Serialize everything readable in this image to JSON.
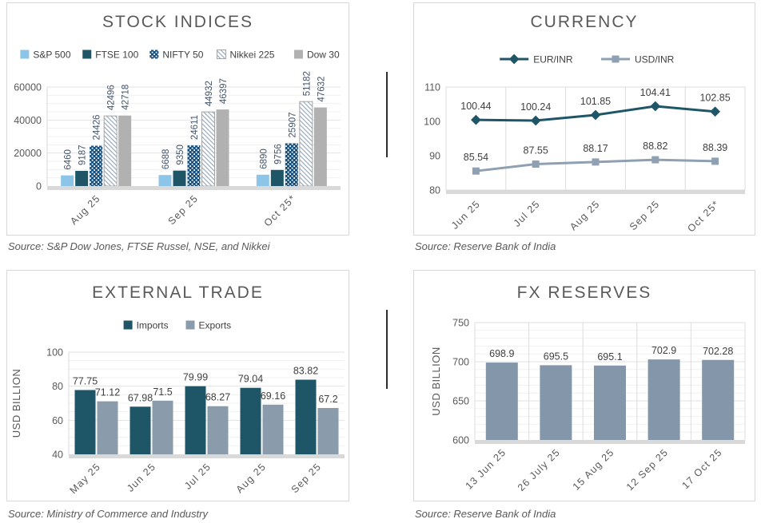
{
  "colors": {
    "dark_teal": "#1E5668",
    "dotted_blue": "#174F7D",
    "light_blue": "#8DC5E8",
    "gray_blue": "#8496A9",
    "gray": "#B1B1B2",
    "title_gray": "#595959",
    "panel_border": "#D8D8D8"
  },
  "chart_data": [
    {
      "id": "stock-indices",
      "type": "bar",
      "title": "STOCK INDICES",
      "source": "Source: S&P Dow Jones, FTSE Russel, NSE, and Nikkei",
      "categories": [
        "Aug 25",
        "Sep 25",
        "Oct 25*"
      ],
      "series": [
        {
          "name": "S&P 500",
          "values": [
            6460,
            6688,
            6890
          ],
          "color": "#8DC5E8",
          "pattern": "solid"
        },
        {
          "name": "FTSE 100",
          "values": [
            9187,
            9350,
            9756
          ],
          "color": "#1E5668",
          "pattern": "solid"
        },
        {
          "name": "NIFTY 50",
          "values": [
            24426,
            24611,
            25907
          ],
          "color": "#174F7D",
          "pattern": "dots"
        },
        {
          "name": "Nikkei 225",
          "values": [
            42496,
            44932,
            51182
          ],
          "color": "#FFFFFF",
          "pattern": "hatch"
        },
        {
          "name": "Dow 30",
          "values": [
            42718,
            46397,
            47632
          ],
          "color": "#B1B1B2",
          "pattern": "solid"
        }
      ],
      "ylim": [
        0,
        60000
      ],
      "yticks": [
        0,
        20000,
        40000,
        60000
      ],
      "minor_step": 5000,
      "grid": true,
      "legend_position": "top",
      "value_label_style": "rotated"
    },
    {
      "id": "currency",
      "type": "line",
      "title": "CURRENCY",
      "source": "Source: Reserve Bank of India",
      "categories": [
        "Jun 25",
        "Jul 25",
        "Aug 25",
        "Sep 25",
        "Oct 25*"
      ],
      "series": [
        {
          "name": "EUR/INR",
          "values": [
            100.44,
            100.24,
            101.85,
            104.41,
            102.85
          ],
          "color": "#1E5668",
          "marker": "diamond"
        },
        {
          "name": "USD/INR",
          "values": [
            85.54,
            87.55,
            88.17,
            88.82,
            88.39
          ],
          "color": "#8FA0B2",
          "marker": "square"
        }
      ],
      "ylim": [
        80,
        110
      ],
      "yticks": [
        80,
        90,
        100,
        110
      ],
      "grid": false,
      "legend_position": "top"
    },
    {
      "id": "external-trade",
      "type": "bar",
      "title": "EXTERNAL TRADE",
      "source": "Source: Ministry of Commerce and Industry",
      "ylabel": "USD BILLION",
      "categories": [
        "May 25",
        "Jun 25",
        "Jul 25",
        "Aug 25",
        "Sep 25"
      ],
      "series": [
        {
          "name": "Imports",
          "values": [
            77.75,
            67.98,
            79.99,
            79.04,
            83.82
          ],
          "color": "#1E5668",
          "pattern": "solid"
        },
        {
          "name": "Exports",
          "values": [
            71.12,
            71.5,
            68.27,
            69.16,
            67.2
          ],
          "color": "#8A9BAC",
          "pattern": "solid"
        }
      ],
      "ylim": [
        40,
        100
      ],
      "yticks": [
        40,
        60,
        80,
        100
      ],
      "minor_step": 5,
      "grid": true,
      "legend_position": "top",
      "value_label_style": "horizontal"
    },
    {
      "id": "fx-reserves",
      "type": "bar",
      "title": "FX RESERVES",
      "source": "Source: Reserve Bank of India",
      "ylabel": "USD BILLION",
      "categories": [
        "13 Jun 25",
        "26 July 25",
        "15 Aug 25",
        "12 Sep 25",
        "17 Oct 25"
      ],
      "series": [
        {
          "name": "FX Reserves",
          "values": [
            698.9,
            695.5,
            695.1,
            702.9,
            702.28
          ],
          "color": "#8496A9",
          "pattern": "solid"
        }
      ],
      "ylim": [
        600,
        750
      ],
      "yticks": [
        600,
        650,
        700,
        750
      ],
      "minor_step": 10,
      "grid": true,
      "legend": false,
      "value_label_style": "horizontal"
    }
  ]
}
